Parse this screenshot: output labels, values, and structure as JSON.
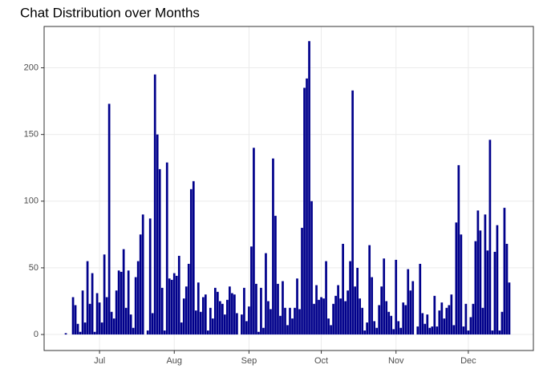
{
  "chart_data": {
    "type": "bar",
    "title": "Chat Distribution over Months",
    "x": [
      168,
      169,
      170,
      171,
      172,
      173,
      174,
      175,
      176,
      177,
      178,
      179,
      180,
      181,
      182,
      183,
      184,
      185,
      186,
      187,
      188,
      189,
      190,
      191,
      192,
      193,
      194,
      195,
      196,
      197,
      198,
      199,
      200,
      201,
      202,
      203,
      204,
      205,
      206,
      207,
      208,
      209,
      210,
      211,
      212,
      213,
      214,
      215,
      216,
      217,
      218,
      219,
      220,
      221,
      222,
      223,
      224,
      225,
      226,
      227,
      228,
      229,
      230,
      231,
      232,
      233,
      234,
      235,
      236,
      237,
      238,
      239,
      240,
      241,
      242,
      243,
      244,
      245,
      246,
      247,
      248,
      249,
      250,
      251,
      252,
      253,
      254,
      255,
      256,
      257,
      258,
      259,
      260,
      261,
      262,
      263,
      264,
      265,
      266,
      267,
      268,
      269,
      270,
      271,
      272,
      273,
      274,
      275,
      276,
      277,
      278,
      279,
      280,
      281,
      282,
      283,
      284,
      285,
      286,
      287,
      288,
      289,
      290,
      291,
      292,
      293,
      294,
      295,
      296,
      297,
      298,
      299,
      300,
      301,
      302,
      303,
      304,
      305,
      306,
      307,
      308,
      309,
      310,
      311,
      312,
      313,
      314,
      315,
      316,
      317,
      318,
      319,
      320,
      321,
      322,
      323,
      324,
      325,
      326,
      327,
      328,
      329,
      330,
      331,
      332,
      333,
      334,
      335,
      336,
      337,
      338,
      339,
      340,
      341,
      342,
      343,
      344,
      345,
      346,
      347,
      348,
      349,
      350,
      351,
      352
    ],
    "values": [
      1,
      0,
      0,
      28,
      22,
      8,
      2,
      33,
      9,
      55,
      23,
      46,
      2,
      31,
      24,
      9,
      60,
      28,
      173,
      17,
      12,
      33,
      48,
      47,
      64,
      20,
      48,
      15,
      5,
      43,
      55,
      75,
      90,
      0,
      3,
      87,
      16,
      195,
      150,
      124,
      35,
      3,
      129,
      42,
      41,
      46,
      44,
      59,
      9,
      27,
      36,
      53,
      109,
      115,
      18,
      39,
      17,
      28,
      30,
      3,
      20,
      12,
      35,
      32,
      25,
      23,
      15,
      26,
      36,
      31,
      30,
      16,
      0,
      15,
      35,
      10,
      21,
      66,
      140,
      38,
      2,
      35,
      5,
      61,
      25,
      19,
      132,
      89,
      38,
      14,
      40,
      20,
      7,
      20,
      12,
      20,
      42,
      19,
      80,
      185,
      192,
      220,
      100,
      23,
      37,
      26,
      28,
      27,
      55,
      12,
      7,
      23,
      29,
      37,
      27,
      68,
      25,
      33,
      55,
      183,
      36,
      50,
      27,
      20,
      3,
      9,
      67,
      43,
      10,
      5,
      22,
      36,
      57,
      25,
      17,
      14,
      4,
      56,
      10,
      5,
      24,
      22,
      49,
      33,
      40,
      0,
      6,
      53,
      16,
      8,
      15,
      5,
      6,
      29,
      6,
      18,
      24,
      12,
      20,
      22,
      30,
      7,
      84,
      127,
      75,
      6,
      23,
      3,
      13,
      23,
      70,
      93,
      78,
      20,
      90,
      63,
      146,
      3,
      62,
      82,
      3,
      17,
      95,
      68,
      39
    ],
    "color": "#00008b",
    "xlim": [
      159,
      362
    ],
    "xticks": [
      {
        "value": 182,
        "label": "Jul"
      },
      {
        "value": 213,
        "label": "Aug"
      },
      {
        "value": 244,
        "label": "Sep"
      },
      {
        "value": 274,
        "label": "Oct"
      },
      {
        "value": 305,
        "label": "Nov"
      },
      {
        "value": 335,
        "label": "Dec"
      }
    ],
    "ylim": [
      -12,
      231
    ],
    "yticks": [
      0,
      50,
      100,
      150,
      200
    ],
    "grid": true
  }
}
